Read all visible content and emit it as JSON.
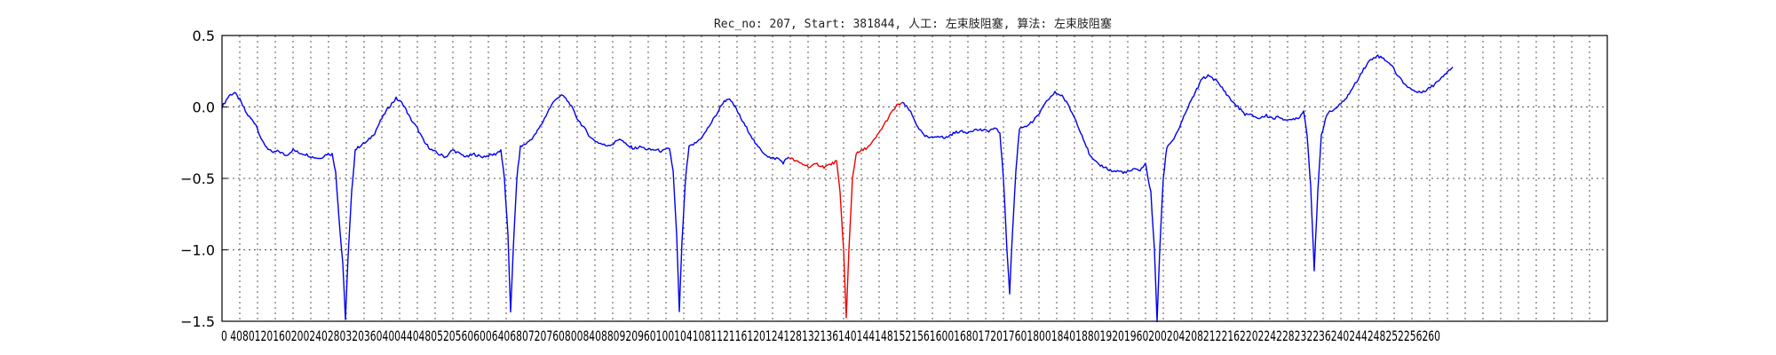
{
  "chart_data": {
    "type": "line",
    "title": "Rec_no: 207, Start: 381844, 人工: 左束肢阻塞, 算法: 左束肢阻塞",
    "xlabel": "",
    "ylabel": "",
    "xlim": [
      0,
      1560
    ],
    "ylim": [
      -1.5,
      0.5
    ],
    "grid": true,
    "y_ticks": [
      0.5,
      0.0,
      -0.5,
      -1.0,
      -1.5
    ],
    "y_tick_labels": [
      "0.5",
      "0.0",
      "−0.5",
      "−1.0",
      "−1.5"
    ],
    "x_ticks": [
      0,
      20,
      40,
      60,
      80,
      100,
      120,
      140,
      160,
      180,
      200,
      220,
      240,
      260,
      280,
      300,
      320,
      340,
      360,
      380,
      400,
      420,
      440,
      460,
      480,
      500,
      520,
      540,
      560,
      580,
      600,
      620,
      640,
      660,
      680,
      700,
      720,
      740,
      760,
      780,
      800,
      820,
      840,
      860,
      880,
      900,
      920,
      940,
      960,
      980,
      1000,
      1020,
      1040,
      1060,
      1080,
      1100,
      1120,
      1140,
      1160,
      1180,
      1200,
      1220,
      1240,
      1260,
      1280,
      1300,
      1320,
      1340,
      1360,
      1380,
      1400,
      1420,
      1440,
      1460,
      1480,
      1500,
      1520,
      1540
    ],
    "x_tick_labels_text": "0 4080120160200240280320360400440480520560600640680720760800840880920960100104108112116120124128132136140144148152156160016801720176018001840188019201960200204208212216220224228232236240244248252256260",
    "colors": {
      "signal": "#0000ee",
      "highlight": "#ee0000",
      "frame": "#000000"
    },
    "series": [
      {
        "color": "#0000ee",
        "x": [
          0,
          20,
          30,
          50,
          70,
          85,
          100,
          120,
          130,
          140,
          150,
          160,
          170,
          180,
          185,
          190,
          195,
          200,
          210,
          220,
          240,
          260,
          280,
          300,
          320,
          340,
          360,
          380,
          390,
          400,
          410,
          420,
          440,
          460,
          470,
          480,
          490,
          500,
          510,
          515,
          520,
          525,
          530,
          540,
          560,
          580,
          600,
          620,
          640,
          660,
          680,
          700,
          720,
          740,
          760,
          780,
          790,
          800,
          810,
          820,
          840,
          860,
          880,
          900,
          920,
          940,
          960,
          980,
          1000,
          1020,
          1040,
          1060,
          1080,
          1100,
          1120,
          1140,
          1160
        ],
        "y": [
          0.0,
          0.1,
          0.05,
          -0.1,
          -0.3,
          -0.32,
          -0.28,
          -0.32,
          -0.35,
          -0.38,
          -0.36,
          -0.3,
          -0.9,
          -1.48,
          -0.8,
          -0.3,
          -0.27,
          -0.25,
          -0.15,
          -0.05,
          0.05,
          -0.05,
          -0.25,
          -0.32,
          -0.3,
          -0.35,
          -0.32,
          -0.38,
          -0.9,
          -1.42,
          -0.7,
          -0.3,
          -0.25,
          -0.15,
          0.0,
          0.08,
          0.1,
          0.02,
          -0.1,
          -0.2,
          -0.25,
          -0.27,
          -0.25,
          -0.3,
          -0.3,
          -0.3,
          -0.9,
          -1.42,
          -0.7,
          -0.3,
          -0.25,
          -0.2,
          -0.1,
          0.05,
          -0.05,
          -0.2,
          -0.3,
          -0.35,
          -0.38,
          -0.4,
          -0.38,
          -0.35,
          -0.4,
          -0.38,
          -0.3,
          -0.35,
          -0.4,
          -0.42,
          -0.45,
          -0.44,
          -0.42,
          -0.4,
          -0.38,
          -0.45,
          -0.45,
          -0.4,
          -0.35
        ]
      }
    ],
    "segments": [
      {
        "color": "#0000ee",
        "points": [
          [
            0,
            0.0
          ],
          [
            8,
            0.08
          ],
          [
            14,
            0.1
          ],
          [
            20,
            0.05
          ],
          [
            28,
            -0.05
          ],
          [
            38,
            -0.12
          ],
          [
            46,
            -0.25
          ],
          [
            56,
            -0.32
          ],
          [
            64,
            -0.31
          ],
          [
            72,
            -0.34
          ],
          [
            80,
            -0.3
          ],
          [
            86,
            -0.32
          ],
          [
            94,
            -0.33
          ],
          [
            102,
            -0.35
          ],
          [
            110,
            -0.36
          ],
          [
            118,
            -0.33
          ],
          [
            124,
            -0.33
          ],
          [
            128,
            -0.45
          ],
          [
            132,
            -0.8
          ],
          [
            136,
            -1.1
          ],
          [
            139,
            -1.48
          ],
          [
            142,
            -1.05
          ],
          [
            146,
            -0.6
          ],
          [
            150,
            -0.3
          ],
          [
            156,
            -0.27
          ],
          [
            164,
            -0.24
          ],
          [
            172,
            -0.18
          ],
          [
            180,
            -0.08
          ],
          [
            188,
            0.0
          ],
          [
            196,
            0.06
          ],
          [
            204,
            0.02
          ],
          [
            212,
            -0.08
          ],
          [
            220,
            -0.15
          ],
          [
            228,
            -0.25
          ],
          [
            236,
            -0.3
          ],
          [
            244,
            -0.33
          ],
          [
            252,
            -0.35
          ],
          [
            260,
            -0.3
          ],
          [
            268,
            -0.33
          ],
          [
            276,
            -0.35
          ],
          [
            284,
            -0.33
          ],
          [
            292,
            -0.35
          ],
          [
            300,
            -0.34
          ],
          [
            308,
            -0.33
          ],
          [
            314,
            -0.3
          ],
          [
            318,
            -0.5
          ],
          [
            322,
            -0.9
          ],
          [
            325,
            -1.43
          ],
          [
            328,
            -1.0
          ],
          [
            332,
            -0.5
          ],
          [
            336,
            -0.28
          ],
          [
            344,
            -0.25
          ],
          [
            352,
            -0.2
          ],
          [
            360,
            -0.12
          ],
          [
            368,
            -0.02
          ],
          [
            376,
            0.06
          ],
          [
            384,
            0.08
          ],
          [
            392,
            0.02
          ],
          [
            400,
            -0.08
          ],
          [
            408,
            -0.15
          ],
          [
            416,
            -0.22
          ],
          [
            424,
            -0.25
          ],
          [
            432,
            -0.27
          ],
          [
            440,
            -0.26
          ],
          [
            448,
            -0.22
          ],
          [
            456,
            -0.27
          ],
          [
            464,
            -0.29
          ],
          [
            472,
            -0.28
          ],
          [
            480,
            -0.3
          ],
          [
            488,
            -0.3
          ],
          [
            496,
            -0.31
          ],
          [
            504,
            -0.29
          ],
          [
            508,
            -0.45
          ],
          [
            512,
            -0.9
          ],
          [
            515,
            -1.43
          ],
          [
            518,
            -0.95
          ],
          [
            522,
            -0.5
          ],
          [
            526,
            -0.28
          ],
          [
            534,
            -0.25
          ],
          [
            542,
            -0.2
          ],
          [
            550,
            -0.12
          ],
          [
            558,
            -0.04
          ],
          [
            564,
            0.03
          ],
          [
            570,
            0.06
          ],
          [
            578,
            0.0
          ],
          [
            586,
            -0.1
          ],
          [
            594,
            -0.18
          ],
          [
            602,
            -0.27
          ],
          [
            610,
            -0.32
          ],
          [
            618,
            -0.36
          ],
          [
            626,
            -0.36
          ],
          [
            632,
            -0.39
          ],
          [
            638,
            -0.35
          ]
        ]
      },
      {
        "color": "#ee0000",
        "points": [
          [
            638,
            -0.35
          ],
          [
            646,
            -0.38
          ],
          [
            654,
            -0.4
          ],
          [
            662,
            -0.42
          ],
          [
            670,
            -0.4
          ],
          [
            678,
            -0.42
          ],
          [
            686,
            -0.4
          ],
          [
            692,
            -0.38
          ],
          [
            696,
            -0.6
          ],
          [
            700,
            -1.0
          ],
          [
            703,
            -1.48
          ],
          [
            706,
            -1.0
          ],
          [
            710,
            -0.5
          ],
          [
            714,
            -0.33
          ],
          [
            722,
            -0.3
          ],
          [
            730,
            -0.27
          ],
          [
            738,
            -0.2
          ],
          [
            746,
            -0.12
          ],
          [
            754,
            -0.04
          ],
          [
            760,
            0.01
          ],
          [
            766,
            0.03
          ]
        ]
      },
      {
        "color": "#0000ee",
        "points": [
          [
            766,
            0.03
          ],
          [
            774,
            -0.02
          ],
          [
            782,
            -0.12
          ],
          [
            790,
            -0.2
          ],
          [
            798,
            -0.22
          ],
          [
            806,
            -0.2
          ],
          [
            814,
            -0.22
          ],
          [
            822,
            -0.19
          ],
          [
            830,
            -0.17
          ],
          [
            838,
            -0.18
          ],
          [
            846,
            -0.16
          ],
          [
            854,
            -0.16
          ],
          [
            862,
            -0.17
          ],
          [
            870,
            -0.15
          ],
          [
            876,
            -0.18
          ],
          [
            880,
            -0.5
          ],
          [
            884,
            -1.0
          ],
          [
            887,
            -1.3
          ],
          [
            890,
            -0.9
          ],
          [
            894,
            -0.45
          ],
          [
            898,
            -0.15
          ],
          [
            906,
            -0.13
          ],
          [
            914,
            -0.1
          ],
          [
            922,
            -0.03
          ],
          [
            930,
            0.05
          ],
          [
            938,
            0.1
          ],
          [
            946,
            0.08
          ],
          [
            954,
            0.0
          ],
          [
            962,
            -0.1
          ],
          [
            970,
            -0.22
          ],
          [
            978,
            -0.35
          ],
          [
            986,
            -0.4
          ],
          [
            994,
            -0.42
          ],
          [
            1002,
            -0.45
          ],
          [
            1010,
            -0.45
          ],
          [
            1018,
            -0.46
          ],
          [
            1026,
            -0.44
          ],
          [
            1034,
            -0.44
          ],
          [
            1040,
            -0.4
          ],
          [
            1046,
            -0.6
          ],
          [
            1050,
            -1.0
          ],
          [
            1053,
            -1.5
          ],
          [
            1056,
            -1.0
          ],
          [
            1060,
            -0.5
          ],
          [
            1064,
            -0.28
          ],
          [
            1072,
            -0.22
          ],
          [
            1080,
            -0.12
          ],
          [
            1088,
            0.0
          ],
          [
            1096,
            0.1
          ],
          [
            1104,
            0.2
          ],
          [
            1112,
            0.22
          ],
          [
            1120,
            0.18
          ],
          [
            1128,
            0.12
          ],
          [
            1136,
            0.05
          ],
          [
            1144,
            0.0
          ],
          [
            1152,
            -0.05
          ],
          [
            1160,
            -0.06
          ],
          [
            1168,
            -0.08
          ],
          [
            1176,
            -0.06
          ],
          [
            1184,
            -0.08
          ],
          [
            1192,
            -0.07
          ],
          [
            1200,
            -0.1
          ],
          [
            1208,
            -0.08
          ],
          [
            1214,
            -0.07
          ],
          [
            1218,
            -0.02
          ],
          [
            1222,
            -0.2
          ],
          [
            1226,
            -0.55
          ],
          [
            1230,
            -1.14
          ],
          [
            1234,
            -0.6
          ],
          [
            1238,
            -0.2
          ],
          [
            1244,
            -0.05
          ],
          [
            1252,
            -0.02
          ],
          [
            1260,
            0.02
          ],
          [
            1268,
            0.08
          ],
          [
            1276,
            0.16
          ],
          [
            1284,
            0.25
          ],
          [
            1292,
            0.32
          ],
          [
            1300,
            0.36
          ],
          [
            1308,
            0.34
          ],
          [
            1316,
            0.3
          ],
          [
            1324,
            0.22
          ],
          [
            1332,
            0.16
          ],
          [
            1340,
            0.12
          ],
          [
            1348,
            0.1
          ],
          [
            1356,
            0.12
          ],
          [
            1364,
            0.15
          ],
          [
            1372,
            0.2
          ],
          [
            1380,
            0.25
          ],
          [
            1386,
            0.28
          ]
        ]
      }
    ]
  }
}
